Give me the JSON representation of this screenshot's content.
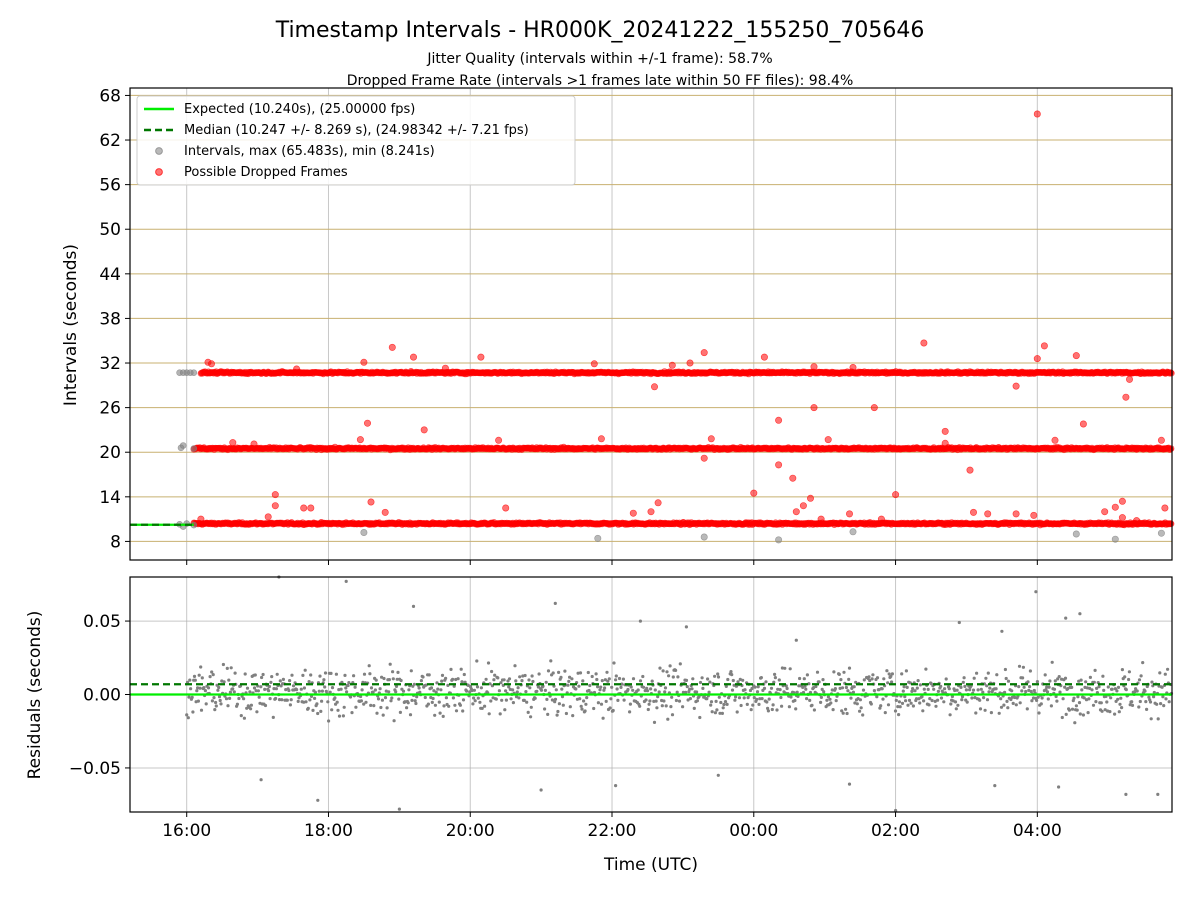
{
  "figure": {
    "title": "Timestamp Intervals - HR000K_20241222_155250_705646",
    "subtitle_1": "Jitter Quality (intervals within +/-1 frame): 58.7%",
    "subtitle_2": "Dropped Frame Rate (intervals >1 frames late within 50 FF files): 98.4%",
    "xlabel": "Time (UTC)",
    "colors": {
      "expected": "#00ee00",
      "median": "#007700",
      "interval": "#808080",
      "dropped": "#ff0000",
      "hgrid_top": "#c8b070",
      "grid": "#b0b0b0"
    }
  },
  "chart_data": [
    {
      "type": "scatter",
      "title": "Timestamp Intervals - HR000K_20241222_155250_705646",
      "xlabel": "",
      "ylabel": "Intervals (seconds)",
      "x_unit": "hours (UTC, continuing past midnight)",
      "xlim": [
        15.2,
        29.9
      ],
      "ylim": [
        5.5,
        69.0
      ],
      "x_ticks": [
        "16:00",
        "18:00",
        "20:00",
        "22:00",
        "00:00",
        "02:00",
        "04:00"
      ],
      "y_ticks": [
        "8",
        "14",
        "20",
        "26",
        "32",
        "38",
        "44",
        "50",
        "56",
        "62",
        "68"
      ],
      "grid": true,
      "legend_position": "top-left",
      "legend": [
        "Expected (10.240s), (25.00000 fps)",
        "Median (10.247 +/- 8.269 s), (24.98342 +/- 7.21 fps)",
        "Intervals, max (65.483s), min (8.241s)",
        "Possible Dropped Frames"
      ],
      "expected_interval": 10.24,
      "median_interval": 10.247,
      "interval_bands": [
        {
          "name": "~10 s band",
          "y": 10.4,
          "x_start": 16.1,
          "x_end": 29.9
        },
        {
          "name": "~20 s band",
          "y": 20.5,
          "x_start": 16.1,
          "x_end": 29.9
        },
        {
          "name": "~31 s band",
          "y": 30.7,
          "x_start": 16.2,
          "x_end": 29.9
        }
      ],
      "early_gray_points": [
        [
          15.9,
          30.7
        ],
        [
          15.95,
          30.7
        ],
        [
          16.0,
          30.7
        ],
        [
          16.05,
          30.7
        ],
        [
          16.1,
          30.7
        ],
        [
          15.92,
          20.6
        ],
        [
          15.95,
          20.9
        ],
        [
          16.1,
          20.5
        ],
        [
          15.9,
          10.3
        ],
        [
          15.95,
          10.0
        ],
        [
          16.0,
          10.4
        ],
        [
          16.1,
          10.2
        ]
      ],
      "series": [
        {
          "name": "Intervals, max (65.483s), min (8.241s)",
          "points": [
            [
              18.5,
              9.2
            ],
            [
              21.8,
              8.4
            ],
            [
              23.3,
              8.6
            ],
            [
              24.35,
              8.2
            ],
            [
              25.4,
              9.3
            ],
            [
              28.55,
              9.0
            ],
            [
              29.1,
              8.3
            ],
            [
              29.75,
              9.1
            ]
          ]
        },
        {
          "name": "Possible Dropped Frames",
          "points": [
            [
              16.2,
              11.0
            ],
            [
              16.3,
              32.1
            ],
            [
              16.35,
              31.9
            ],
            [
              16.65,
              21.3
            ],
            [
              16.95,
              21.1
            ],
            [
              17.15,
              11.3
            ],
            [
              17.25,
              12.8
            ],
            [
              17.25,
              14.3
            ],
            [
              17.55,
              31.2
            ],
            [
              17.65,
              12.5
            ],
            [
              17.75,
              12.5
            ],
            [
              18.45,
              21.7
            ],
            [
              18.5,
              32.1
            ],
            [
              18.55,
              23.9
            ],
            [
              18.6,
              13.3
            ],
            [
              18.8,
              11.9
            ],
            [
              18.9,
              34.1
            ],
            [
              19.2,
              32.8
            ],
            [
              19.35,
              23.0
            ],
            [
              19.65,
              31.3
            ],
            [
              20.15,
              32.8
            ],
            [
              20.4,
              21.6
            ],
            [
              20.5,
              12.5
            ],
            [
              21.75,
              31.9
            ],
            [
              21.85,
              21.8
            ],
            [
              22.3,
              11.8
            ],
            [
              22.55,
              12.0
            ],
            [
              22.6,
              28.8
            ],
            [
              22.65,
              13.2
            ],
            [
              22.85,
              31.7
            ],
            [
              23.1,
              32.0
            ],
            [
              23.3,
              33.4
            ],
            [
              23.3,
              19.2
            ],
            [
              23.4,
              21.8
            ],
            [
              24.0,
              14.5
            ],
            [
              24.15,
              32.8
            ],
            [
              24.35,
              24.3
            ],
            [
              24.35,
              18.3
            ],
            [
              24.55,
              16.5
            ],
            [
              24.6,
              12.0
            ],
            [
              24.7,
              12.8
            ],
            [
              24.8,
              13.8
            ],
            [
              24.85,
              31.5
            ],
            [
              24.85,
              26.0
            ],
            [
              24.95,
              11.0
            ],
            [
              25.05,
              21.7
            ],
            [
              25.35,
              11.7
            ],
            [
              25.4,
              31.4
            ],
            [
              25.7,
              26.0
            ],
            [
              25.8,
              11.0
            ],
            [
              26.0,
              14.3
            ],
            [
              26.4,
              34.7
            ],
            [
              26.7,
              22.8
            ],
            [
              26.7,
              21.2
            ],
            [
              27.05,
              17.6
            ],
            [
              27.1,
              11.9
            ],
            [
              27.3,
              11.7
            ],
            [
              27.7,
              28.9
            ],
            [
              27.7,
              11.7
            ],
            [
              27.95,
              11.5
            ],
            [
              28.0,
              32.6
            ],
            [
              28.1,
              34.3
            ],
            [
              28.25,
              21.6
            ],
            [
              28.55,
              33.0
            ],
            [
              28.65,
              23.8
            ],
            [
              28.95,
              12.0
            ],
            [
              29.1,
              12.6
            ],
            [
              29.2,
              11.2
            ],
            [
              29.2,
              13.4
            ],
            [
              29.25,
              27.4
            ],
            [
              29.3,
              29.8
            ],
            [
              29.4,
              20.4
            ],
            [
              29.4,
              10.8
            ],
            [
              29.75,
              21.6
            ],
            [
              29.8,
              12.5
            ],
            [
              28.0,
              65.5
            ]
          ]
        }
      ]
    },
    {
      "type": "scatter",
      "xlabel": "Time (UTC)",
      "ylabel": "Residuals (seconds)",
      "xlim": [
        15.2,
        29.9
      ],
      "ylim": [
        -0.08,
        0.08
      ],
      "x_ticks": [
        "16:00",
        "18:00",
        "20:00",
        "22:00",
        "00:00",
        "02:00",
        "04:00"
      ],
      "y_ticks": [
        "0.05",
        "0.00",
        "−0.05"
      ],
      "grid": true,
      "expected_residual": 0.0,
      "median_residual": 0.007,
      "residual_spread": 0.02,
      "outliers": [
        [
          17.3,
          0.08
        ],
        [
          18.25,
          0.077
        ],
        [
          19.2,
          0.06
        ],
        [
          21.2,
          0.062
        ],
        [
          22.4,
          0.05
        ],
        [
          23.05,
          0.046
        ],
        [
          24.6,
          0.037
        ],
        [
          26.9,
          0.049
        ],
        [
          27.5,
          0.043
        ],
        [
          27.98,
          0.07
        ],
        [
          28.4,
          0.052
        ],
        [
          28.6,
          0.055
        ],
        [
          17.05,
          -0.058
        ],
        [
          17.85,
          -0.072
        ],
        [
          19.0,
          -0.078
        ],
        [
          21.0,
          -0.065
        ],
        [
          22.05,
          -0.062
        ],
        [
          23.5,
          -0.055
        ],
        [
          25.35,
          -0.061
        ],
        [
          26.0,
          -0.079
        ],
        [
          27.4,
          -0.062
        ],
        [
          28.3,
          -0.063
        ],
        [
          29.25,
          -0.068
        ],
        [
          29.7,
          -0.068
        ]
      ]
    }
  ]
}
